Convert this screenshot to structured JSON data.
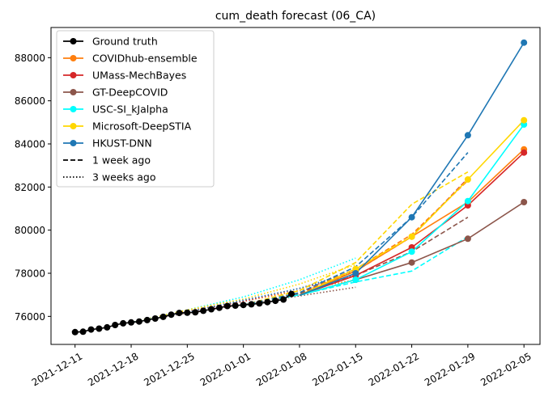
{
  "chart_data": {
    "type": "line",
    "title": "cum_death forecast (06_CA)",
    "xlabel": "",
    "ylabel": "",
    "x_range": [
      "2021-12-08",
      "2022-02-07"
    ],
    "ylim": [
      74700,
      89400
    ],
    "x_ticks": [
      "2021-12-11",
      "2021-12-18",
      "2021-12-25",
      "2022-01-01",
      "2022-01-08",
      "2022-01-15",
      "2022-01-22",
      "2022-01-29",
      "2022-02-05"
    ],
    "y_ticks": [
      76000,
      78000,
      80000,
      82000,
      84000,
      86000,
      88000
    ],
    "grid": false,
    "legend_position": "top-left",
    "legend": [
      {
        "label": "Ground truth",
        "color": "#000000",
        "style": "solid",
        "marker": true
      },
      {
        "label": "COVIDhub-ensemble",
        "color": "#ff7f0e",
        "style": "solid",
        "marker": true
      },
      {
        "label": "UMass-MechBayes",
        "color": "#d62728",
        "style": "solid",
        "marker": true
      },
      {
        "label": "GT-DeepCOVID",
        "color": "#8c564b",
        "style": "solid",
        "marker": true
      },
      {
        "label": "USC-SI_kJalpha",
        "color": "#00ffff",
        "style": "solid",
        "marker": true
      },
      {
        "label": "Microsoft-DeepSTIA",
        "color": "#ffd700",
        "style": "solid",
        "marker": true
      },
      {
        "label": "HKUST-DNN",
        "color": "#1f77b4",
        "style": "solid",
        "marker": true
      },
      {
        "label": "1 week ago",
        "color": "#000000",
        "style": "dashed",
        "marker": false
      },
      {
        "label": "3 weeks ago",
        "color": "#000000",
        "style": "dotted",
        "marker": false
      }
    ],
    "ground_truth": {
      "name": "Ground truth",
      "color": "#000000",
      "dates": [
        "2021-12-11",
        "2021-12-12",
        "2021-12-13",
        "2021-12-14",
        "2021-12-15",
        "2021-12-16",
        "2021-12-17",
        "2021-12-18",
        "2021-12-19",
        "2021-12-20",
        "2021-12-21",
        "2021-12-22",
        "2021-12-23",
        "2021-12-24",
        "2021-12-25",
        "2021-12-26",
        "2021-12-27",
        "2021-12-28",
        "2021-12-29",
        "2021-12-30",
        "2021-12-31",
        "2022-01-01",
        "2022-01-02",
        "2022-01-03",
        "2022-01-04",
        "2022-01-05",
        "2022-01-06",
        "2022-01-07"
      ],
      "values": [
        75270,
        75290,
        75390,
        75430,
        75490,
        75600,
        75680,
        75720,
        75760,
        75830,
        75900,
        75980,
        76080,
        76160,
        76170,
        76190,
        76260,
        76330,
        76400,
        76480,
        76500,
        76530,
        76560,
        76600,
        76660,
        76720,
        76780,
        77040
      ]
    },
    "forecasts": [
      {
        "name": "COVIDhub-ensemble",
        "color": "#ff7f0e",
        "x": [
          "2022-01-08",
          "2022-01-15",
          "2022-01-22",
          "2022-01-29",
          "2022-02-05"
        ],
        "values": [
          76980,
          78100,
          79700,
          81300,
          83750
        ]
      },
      {
        "name": "UMass-MechBayes",
        "color": "#d62728",
        "x": [
          "2022-01-08",
          "2022-01-15",
          "2022-01-22",
          "2022-01-29",
          "2022-02-05"
        ],
        "values": [
          76980,
          77900,
          79200,
          81150,
          83600
        ]
      },
      {
        "name": "GT-DeepCOVID",
        "color": "#8c564b",
        "x": [
          "2022-01-08",
          "2022-01-15",
          "2022-01-22",
          "2022-01-29",
          "2022-02-05"
        ],
        "values": [
          76980,
          77700,
          78500,
          79600,
          81300
        ]
      },
      {
        "name": "USC-SI_kJalpha",
        "color": "#00ffff",
        "x": [
          "2022-01-08",
          "2022-01-15",
          "2022-01-22",
          "2022-01-29",
          "2022-02-05"
        ],
        "values": [
          76980,
          77700,
          79000,
          81350,
          84900
        ]
      },
      {
        "name": "Microsoft-DeepSTIA",
        "color": "#ffd700",
        "x": [
          "2022-01-08",
          "2022-01-15",
          "2022-01-22",
          "2022-01-29",
          "2022-02-05"
        ],
        "values": [
          76980,
          78200,
          79700,
          82350,
          85100
        ]
      },
      {
        "name": "HKUST-DNN",
        "color": "#1f77b4",
        "x": [
          "2022-01-08",
          "2022-01-15",
          "2022-01-22",
          "2022-01-29",
          "2022-02-05"
        ],
        "values": [
          76980,
          78000,
          80600,
          84400,
          88700
        ]
      }
    ],
    "one_week_ago": [
      {
        "name": "COVIDhub-ensemble",
        "color": "#ff7f0e",
        "x": [
          "2022-01-01",
          "2022-01-08",
          "2022-01-15",
          "2022-01-22",
          "2022-01-29"
        ],
        "values": [
          76530,
          77100,
          78200,
          79800,
          82300
        ]
      },
      {
        "name": "UMass-MechBayes",
        "color": "#d62728",
        "x": [
          "2022-01-01",
          "2022-01-08",
          "2022-01-15",
          "2022-01-22",
          "2022-01-29"
        ],
        "values": [
          76530,
          77050,
          78100,
          79700,
          82400
        ]
      },
      {
        "name": "GT-DeepCOVID",
        "color": "#8c564b",
        "x": [
          "2022-01-01",
          "2022-01-08",
          "2022-01-15",
          "2022-01-22",
          "2022-01-29"
        ],
        "values": [
          76530,
          77050,
          77900,
          79000,
          80600
        ]
      },
      {
        "name": "USC-SI_kJalpha",
        "color": "#00ffff",
        "x": [
          "2022-01-01",
          "2022-01-08",
          "2022-01-15",
          "2022-01-22",
          "2022-01-29"
        ],
        "values": [
          76530,
          77000,
          77600,
          78100,
          79700
        ]
      },
      {
        "name": "Microsoft-DeepSTIA",
        "color": "#ffd700",
        "x": [
          "2022-01-01",
          "2022-01-08",
          "2022-01-15",
          "2022-01-22",
          "2022-01-29"
        ],
        "values": [
          76530,
          77200,
          78500,
          81200,
          82700
        ]
      },
      {
        "name": "HKUST-DNN",
        "color": "#1f77b4",
        "x": [
          "2022-01-01",
          "2022-01-08",
          "2022-01-15",
          "2022-01-22",
          "2022-01-29"
        ],
        "values": [
          76530,
          77100,
          78300,
          80600,
          83600
        ]
      }
    ],
    "three_weeks_ago": [
      {
        "name": "COVIDhub-ensemble",
        "color": "#ff7f0e",
        "x": [
          "2021-12-18",
          "2021-12-25",
          "2022-01-01",
          "2022-01-08",
          "2022-01-15"
        ],
        "values": [
          75720,
          76250,
          76700,
          77200,
          77700
        ]
      },
      {
        "name": "UMass-MechBayes",
        "color": "#d62728",
        "x": [
          "2021-12-18",
          "2021-12-25",
          "2022-01-01",
          "2022-01-08",
          "2022-01-15"
        ],
        "values": [
          75720,
          76200,
          76700,
          77300,
          77900
        ]
      },
      {
        "name": "GT-DeepCOVID",
        "color": "#8c564b",
        "x": [
          "2021-12-18",
          "2021-12-25",
          "2022-01-01",
          "2022-01-08",
          "2022-01-15"
        ],
        "values": [
          75720,
          76150,
          76550,
          76950,
          77350
        ]
      },
      {
        "name": "USC-SI_kJalpha",
        "color": "#00ffff",
        "x": [
          "2021-12-18",
          "2021-12-25",
          "2022-01-01",
          "2022-01-08",
          "2022-01-15"
        ],
        "values": [
          75720,
          76300,
          76900,
          77700,
          78700
        ]
      },
      {
        "name": "Microsoft-DeepSTIA",
        "color": "#ffd700",
        "x": [
          "2021-12-18",
          "2021-12-25",
          "2022-01-01",
          "2022-01-08",
          "2022-01-15"
        ],
        "values": [
          75720,
          76300,
          76800,
          77500,
          78400
        ]
      },
      {
        "name": "HKUST-DNN",
        "color": "#1f77b4",
        "x": [
          "2021-12-18",
          "2021-12-25",
          "2022-01-01",
          "2022-01-08",
          "2022-01-15"
        ],
        "values": [
          75720,
          76200,
          76750,
          77300,
          78100
        ]
      }
    ]
  }
}
